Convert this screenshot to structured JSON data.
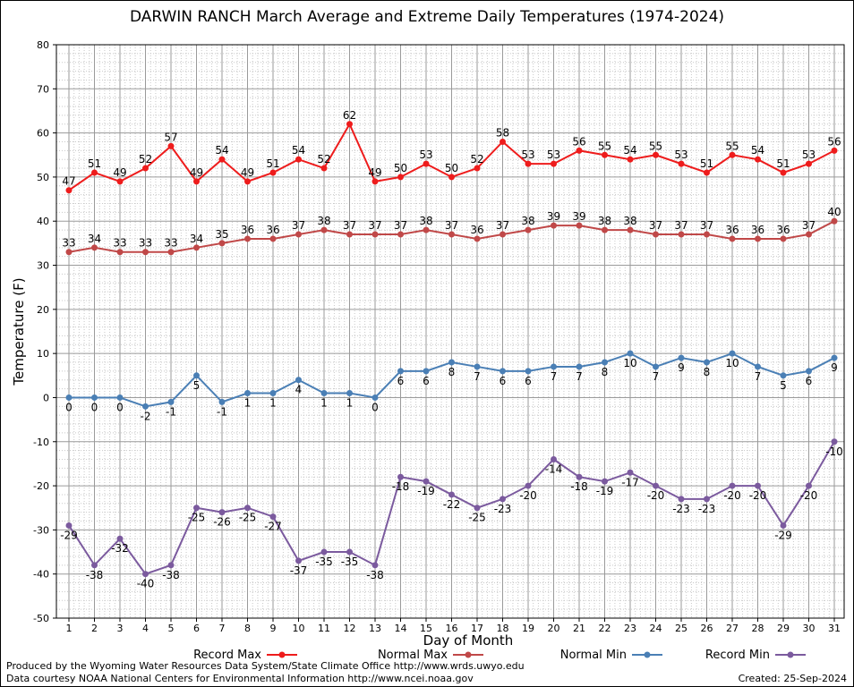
{
  "colors": {
    "record_max": "#ee1c1c",
    "normal_max": "#c04848",
    "normal_min": "#4a7fb5",
    "record_min": "#7b5a9e",
    "grid": "#9a9a9a"
  },
  "chart_data": {
    "type": "line",
    "title": "DARWIN RANCH March Average and Extreme Daily Temperatures (1974-2024)",
    "xlabel": "Day of Month",
    "ylabel": "Temperature (F)",
    "ylim": [
      -50,
      80
    ],
    "yticks": [
      -50,
      -40,
      -30,
      -20,
      -10,
      0,
      10,
      20,
      30,
      40,
      50,
      60,
      70,
      80
    ],
    "x": [
      1,
      2,
      3,
      4,
      5,
      6,
      7,
      8,
      9,
      10,
      11,
      12,
      13,
      14,
      15,
      16,
      17,
      18,
      19,
      20,
      21,
      22,
      23,
      24,
      25,
      26,
      27,
      28,
      29,
      30,
      31
    ],
    "grid": true,
    "legend_placement": "bottom",
    "series": [
      {
        "name": "Record Max",
        "color_key": "record_max",
        "values": [
          47,
          51,
          49,
          52,
          57,
          49,
          54,
          49,
          51,
          54,
          52,
          62,
          49,
          50,
          53,
          50,
          52,
          58,
          53,
          53,
          56,
          55,
          54,
          55,
          53,
          51,
          55,
          54,
          51,
          53,
          56
        ]
      },
      {
        "name": "Normal Max",
        "color_key": "normal_max",
        "values": [
          33,
          34,
          33,
          33,
          33,
          34,
          35,
          36,
          36,
          37,
          38,
          37,
          37,
          37,
          38,
          37,
          36,
          37,
          38,
          39,
          39,
          38,
          38,
          37,
          37,
          37,
          36,
          36,
          36,
          37,
          40
        ]
      },
      {
        "name": "Normal Min",
        "color_key": "normal_min",
        "values": [
          0,
          0,
          0,
          -2,
          -1,
          5,
          -1,
          1,
          1,
          4,
          1,
          1,
          0,
          6,
          6,
          8,
          7,
          6,
          6,
          7,
          7,
          8,
          10,
          7,
          9,
          8,
          10,
          7,
          5,
          6,
          9
        ]
      },
      {
        "name": "Record Min",
        "color_key": "record_min",
        "values": [
          -29,
          -38,
          -32,
          -40,
          -38,
          -25,
          -26,
          -25,
          -27,
          -37,
          -35,
          -35,
          -38,
          -18,
          -19,
          -22,
          -25,
          -23,
          -20,
          -14,
          -18,
          -19,
          -17,
          -20,
          -23,
          -23,
          -20,
          -20,
          -29,
          -20,
          -10
        ]
      }
    ]
  },
  "footer": {
    "line1": "Produced by the Wyoming Water Resources Data System/State Climate Office http://www.wrds.uwyo.edu",
    "line2": "Data courtesy NOAA National Centers for Environmental Information http://www.ncei.noaa.gov",
    "created": "Created:  25-Sep-2024"
  }
}
